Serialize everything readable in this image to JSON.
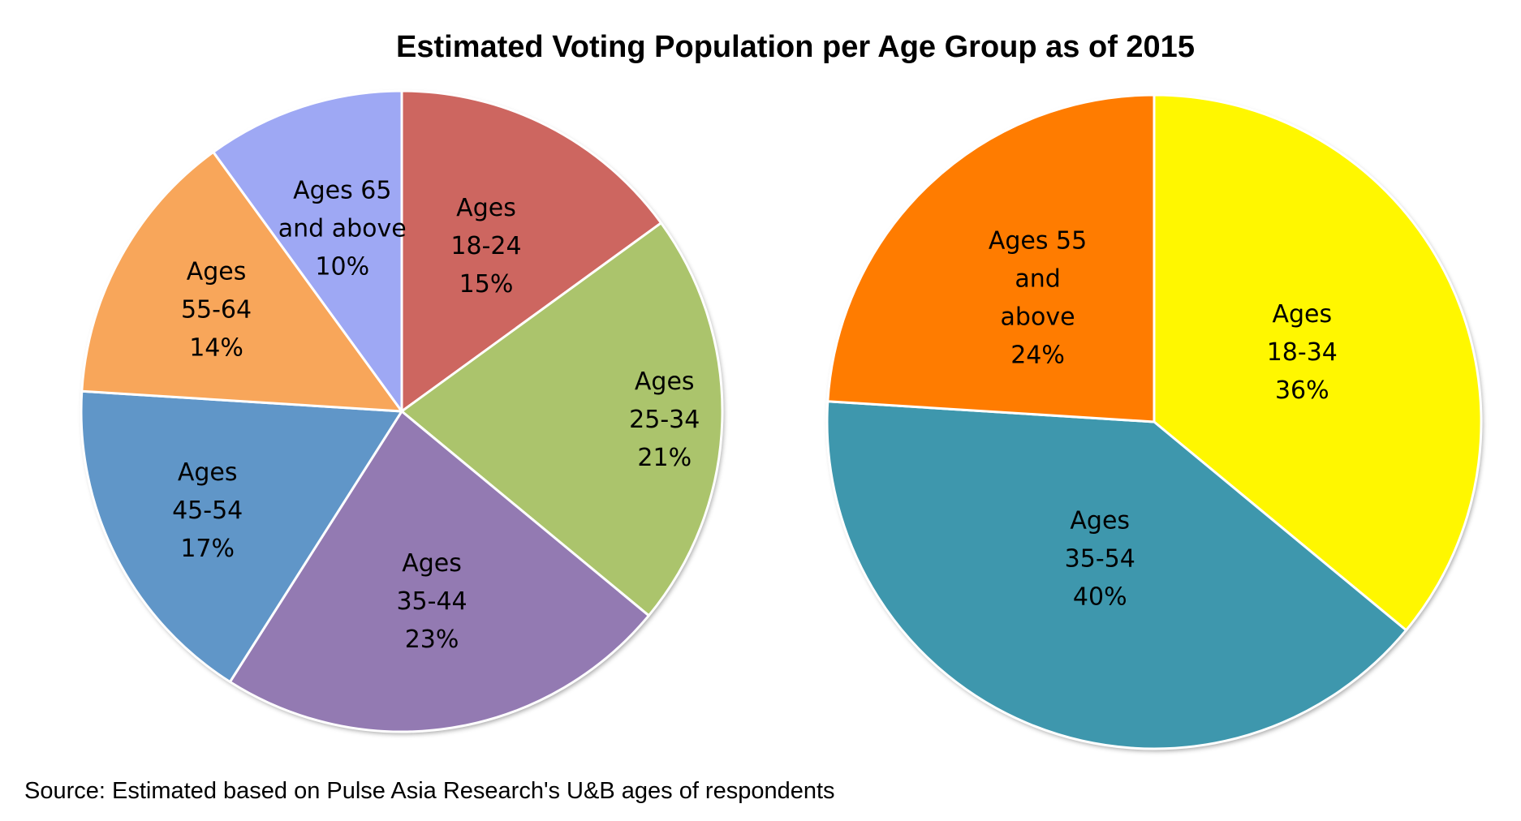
{
  "chart_data": [
    {
      "type": "pie",
      "title": "Estimated Voting Population per Age Group as of 2015",
      "categories": [
        "Ages 18-24",
        "Ages 25-34",
        "Ages 35-44",
        "Ages 45-54",
        "Ages 55-64",
        "Ages 65 and above"
      ],
      "values": [
        15,
        21,
        23,
        17,
        14,
        10
      ],
      "unit": "%",
      "slices": [
        {
          "label_lines": [
            "Ages",
            "18-24",
            "15%"
          ],
          "value": 15,
          "color": "#CD6660"
        },
        {
          "label_lines": [
            "Ages",
            "25-34",
            "21%"
          ],
          "value": 21,
          "color": "#ABC46C"
        },
        {
          "label_lines": [
            "Ages",
            "35-44",
            "23%"
          ],
          "value": 23,
          "color": "#937AB2"
        },
        {
          "label_lines": [
            "Ages",
            "45-54",
            "17%"
          ],
          "value": 17,
          "color": "#6096C8"
        },
        {
          "label_lines": [
            "Ages",
            "55-64",
            "14%"
          ],
          "value": 14,
          "color": "#F8A65A"
        },
        {
          "label_lines": [
            "Ages 65",
            "and above",
            "10%"
          ],
          "value": 10,
          "color": "#9EA8F4"
        }
      ]
    },
    {
      "type": "pie",
      "categories": [
        "Ages 18-34",
        "Ages 35-54",
        "Ages 55 and above"
      ],
      "values": [
        36,
        40,
        24
      ],
      "unit": "%",
      "slices": [
        {
          "label_lines": [
            "Ages",
            "18-34",
            "36%"
          ],
          "value": 36,
          "color": "#FFF700"
        },
        {
          "label_lines": [
            "Ages",
            "35-54",
            "40%"
          ],
          "value": 40,
          "color": "#3E97AD"
        },
        {
          "label_lines": [
            "Ages 55",
            "and",
            "above",
            "24%"
          ],
          "value": 24,
          "color": "#FF7C00"
        }
      ]
    }
  ],
  "title": "Estimated Voting Population per Age Group as of 2015",
  "source": "Source: Estimated based on Pulse Asia Research's U&B ages of respondents"
}
